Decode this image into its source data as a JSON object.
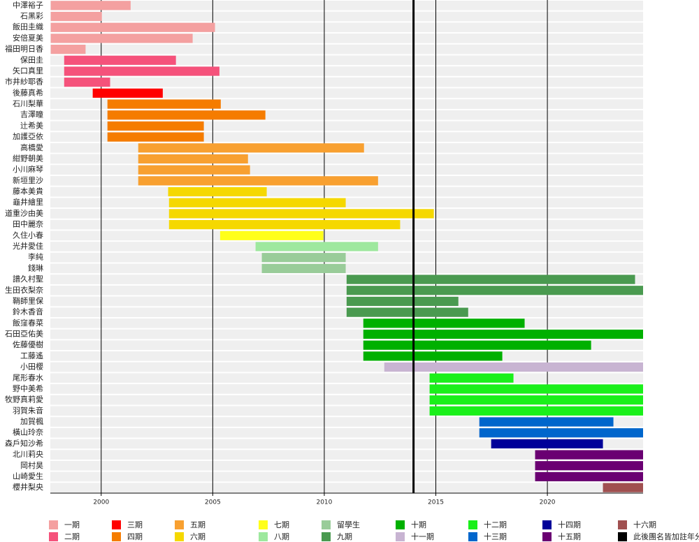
{
  "chart_data": {
    "type": "timeline",
    "xlim": [
      1997.72,
      2024.29
    ],
    "xticks": [
      2000,
      2005,
      2010,
      2015,
      2020
    ],
    "grid": true,
    "marker": {
      "value": 2014.0,
      "label": "此後團名皆加註年分",
      "color": "#000000"
    },
    "series": [
      {
        "name": "一期",
        "color": "#f4a0a0",
        "labels": [
          "中澤裕子",
          "石黑彩",
          "飯田圭織",
          "安倍夏美",
          "福田明日香"
        ],
        "starts": [
          1997.74,
          1997.74,
          1997.74,
          1997.74,
          1997.74
        ],
        "ends": [
          2001.32,
          2000.03,
          2005.1,
          2004.1,
          1999.3
        ]
      },
      {
        "name": "二期",
        "color": "#f5527b",
        "labels": [
          "保田圭",
          "矢口真里",
          "市井紗耶香"
        ],
        "starts": [
          1998.34,
          1998.34,
          1998.34
        ],
        "ends": [
          2003.35,
          2005.3,
          2000.4
        ]
      },
      {
        "name": "三期",
        "color": "#ff0000",
        "labels": [
          "後藤真希"
        ],
        "starts": [
          1999.62
        ],
        "ends": [
          2002.76
        ]
      },
      {
        "name": "四期",
        "color": "#f57c00",
        "labels": [
          "石川梨華",
          "吉澤瞳",
          "辻希美",
          "加護亞依"
        ],
        "starts": [
          2000.28,
          2000.28,
          2000.28,
          2000.28
        ],
        "ends": [
          2005.36,
          2007.36,
          2004.6,
          2004.6
        ]
      },
      {
        "name": "五期",
        "color": "#f8a030",
        "labels": [
          "高橋愛",
          "紺野朝美",
          "小川麻琴",
          "新垣里沙"
        ],
        "starts": [
          2001.66,
          2001.66,
          2001.66,
          2001.66
        ],
        "ends": [
          2011.78,
          2006.58,
          2006.67,
          2012.41
        ]
      },
      {
        "name": "六期",
        "color": "#f5d800",
        "labels": [
          "藤本美貴",
          "龜井繪里",
          "道重沙由美",
          "田中麗奈"
        ],
        "starts": [
          2003.0,
          2003.04,
          2003.04,
          2003.04
        ],
        "ends": [
          2007.42,
          2010.96,
          2014.91,
          2013.4
        ]
      },
      {
        "name": "七期",
        "color": "#ffff1a",
        "labels": [
          "久住小春"
        ],
        "starts": [
          2005.33
        ],
        "ends": [
          2009.96
        ]
      },
      {
        "name": "八期",
        "color": "#9ee89e",
        "labels": [
          "光井愛佳"
        ],
        "starts": [
          2006.92
        ],
        "ends": [
          2012.41
        ]
      },
      {
        "name": "留學生",
        "color": "#99cc99",
        "labels": [
          "李純",
          "錢琳"
        ],
        "starts": [
          2007.2,
          2007.2
        ],
        "ends": [
          2010.96,
          2010.96
        ]
      },
      {
        "name": "九期",
        "color": "#4a9a50",
        "labels": [
          "譜久村聖",
          "生田衣梨奈",
          "鞘師里保",
          "鈴木香音"
        ],
        "starts": [
          2011.0,
          2011.0,
          2011.0,
          2011.0
        ],
        "ends": [
          2023.93,
          2024.29,
          2016.01,
          2016.45
        ]
      },
      {
        "name": "十期",
        "color": "#00b000",
        "labels": [
          "飯窪春菜",
          "石田亞佑美",
          "佐藤優樹",
          "工藤遙"
        ],
        "starts": [
          2011.75,
          2011.75,
          2011.75,
          2011.75
        ],
        "ends": [
          2018.98,
          2024.29,
          2021.96,
          2017.98
        ]
      },
      {
        "name": "十一期",
        "color": "#c8b4d2",
        "labels": [
          "小田櫻"
        ],
        "starts": [
          2012.69
        ],
        "ends": [
          2024.29
        ]
      },
      {
        "name": "十二期",
        "color": "#1af01a",
        "labels": [
          "尾形春水",
          "野中美希",
          "牧野真莉愛",
          "羽賀朱音"
        ],
        "starts": [
          2014.72,
          2014.72,
          2014.72,
          2014.72
        ],
        "ends": [
          2018.48,
          2024.29,
          2024.29,
          2024.29
        ]
      },
      {
        "name": "十三期",
        "color": "#0066cc",
        "labels": [
          "加賀楓",
          "橫山玲奈"
        ],
        "starts": [
          2016.95,
          2016.95
        ],
        "ends": [
          2022.96,
          2024.29
        ]
      },
      {
        "name": "十四期",
        "color": "#000099",
        "labels": [
          "森戶知沙希"
        ],
        "starts": [
          2017.48
        ],
        "ends": [
          2022.49
        ]
      },
      {
        "name": "十五期",
        "color": "#6a0072",
        "labels": [
          "北川莉央",
          "岡村昊",
          "山崎愛生"
        ],
        "starts": [
          2019.45,
          2019.45,
          2019.45
        ],
        "ends": [
          2024.29,
          2024.29,
          2024.29
        ]
      },
      {
        "name": "十六期",
        "color": "#a05050",
        "labels": [
          "櫻井梨央"
        ],
        "starts": [
          2022.49
        ],
        "ends": [
          2024.29
        ]
      }
    ]
  }
}
